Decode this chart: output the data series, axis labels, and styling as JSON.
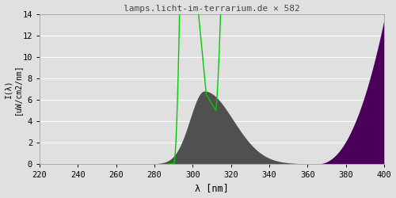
{
  "title": "lamps.licht-im-terrarium.de ✕ 582",
  "xlabel": "λ [nm]",
  "ylabel": "I(λ)\n[uW/cm2/nm]",
  "xlim": [
    220,
    400
  ],
  "ylim": [
    0,
    14
  ],
  "xticks": [
    220,
    240,
    260,
    280,
    300,
    320,
    340,
    360,
    380,
    400
  ],
  "yticks": [
    0,
    2,
    4,
    6,
    8,
    10,
    12,
    14
  ],
  "bg_color": "#e0e0e0",
  "plot_bg_color": "#e0e0e0",
  "grid_color": "#ffffff",
  "spectrum_fill_color": "#505050",
  "violet_fill_color": "#4a005a",
  "green_line_color": "#00cc00",
  "title_color": "#444444",
  "font": "monospace"
}
